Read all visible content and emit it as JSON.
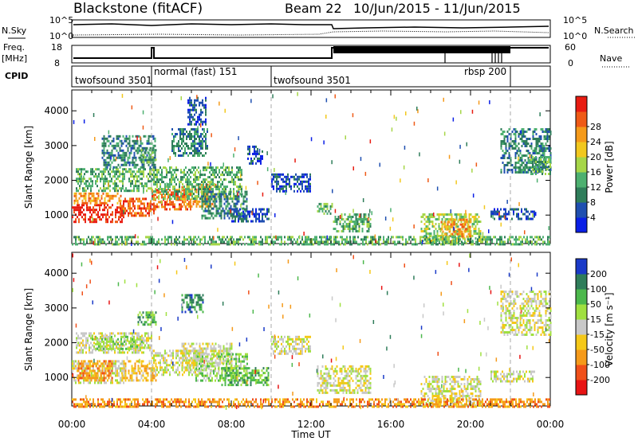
{
  "header": {
    "site": "Blackstone (fitACF)",
    "beam": "Beam 22",
    "dates": "10/Jun/2015 - 11/Jun/2015"
  },
  "left_labels": {
    "nsky": "N.Sky",
    "freq": "Freq.",
    "mhz": "[MHz]",
    "cpid": "CPID"
  },
  "right_labels": {
    "nsearch": "N.Search",
    "nave": "Nave"
  },
  "status_ticks": {
    "noise_left": [
      "10^5",
      "10^0"
    ],
    "noise_right": [
      "10^5",
      "10^0"
    ],
    "freq_left": [
      "18",
      "8"
    ],
    "freq_right": [
      "60",
      "0"
    ]
  },
  "cpid_segments": [
    {
      "label": "twofsound 3501",
      "start_h": 0,
      "end_h": 4
    },
    {
      "label": "normal (fast) 151",
      "start_h": 4,
      "end_h": 10
    },
    {
      "label": "twofsound 3501",
      "start_h": 10,
      "end_h": 18.5
    },
    {
      "label": "rbsp 200",
      "start_h": 18.5,
      "end_h": 22
    }
  ],
  "cpid_boundaries_h": [
    4,
    10,
    22
  ],
  "time_axis": {
    "title": "Time UT",
    "ticks": [
      "00:00",
      "04:00",
      "08:00",
      "12:00",
      "16:00",
      "20:00",
      "00:00"
    ],
    "range_h": [
      0,
      24
    ]
  },
  "chart_data": [
    {
      "type": "heatmap",
      "name": "power",
      "ylabel": "Slant Range [km]",
      "yticks": [
        1000,
        2000,
        3000,
        4000
      ],
      "ylim": [
        180,
        4600
      ],
      "xlim_hours": [
        0,
        24
      ],
      "colorbar": {
        "label": "Power [dB]",
        "ticks": [
          "4",
          "8",
          "12",
          "16",
          "20",
          "24",
          "28"
        ],
        "colors": [
          "#0a1fe6",
          "#1f4fb0",
          "#2f7d5a",
          "#4db070",
          "#a6d648",
          "#f2c81e",
          "#f59a1a",
          "#ef5a16",
          "#e81c12"
        ]
      },
      "echo_regions": [
        {
          "t0": 0.0,
          "t1": 2.6,
          "r0": 820,
          "r1": 1320,
          "c": 8
        },
        {
          "t0": 0.1,
          "t1": 2.5,
          "r0": 1320,
          "r1": 1650,
          "c": 6
        },
        {
          "t0": 2.4,
          "t1": 4.2,
          "r0": 980,
          "r1": 1500,
          "c": 7
        },
        {
          "t0": 4.0,
          "t1": 6.0,
          "r0": 1150,
          "r1": 1750,
          "c": 7
        },
        {
          "t0": 5.5,
          "t1": 7.2,
          "r0": 1250,
          "r1": 1900,
          "c": 6
        },
        {
          "t0": 0.2,
          "t1": 4.0,
          "r0": 1700,
          "r1": 2350,
          "c": 3
        },
        {
          "t0": 4.0,
          "t1": 8.5,
          "r0": 1500,
          "r1": 2400,
          "c": 3
        },
        {
          "t0": 6.5,
          "t1": 8.8,
          "r0": 900,
          "r1": 1700,
          "c": 2
        },
        {
          "t0": 8.0,
          "t1": 9.9,
          "r0": 800,
          "r1": 1200,
          "c": 1
        },
        {
          "t0": 1.5,
          "t1": 4.2,
          "r0": 2400,
          "r1": 3300,
          "c": 2
        },
        {
          "t0": 3.3,
          "t1": 4.2,
          "r0": 2500,
          "r1": 2900,
          "c": 3
        },
        {
          "t0": 5.0,
          "t1": 6.8,
          "r0": 2700,
          "r1": 3500,
          "c": 2
        },
        {
          "t0": 5.8,
          "t1": 6.7,
          "r0": 3600,
          "r1": 4400,
          "c": 1
        },
        {
          "t0": 8.8,
          "t1": 9.6,
          "r0": 2500,
          "r1": 3000,
          "c": 1
        },
        {
          "t0": 10.0,
          "t1": 12.0,
          "r0": 1700,
          "r1": 2200,
          "c": 1
        },
        {
          "t0": 12.3,
          "t1": 13.1,
          "r0": 1050,
          "r1": 1350,
          "c": 3
        },
        {
          "t0": 13.1,
          "t1": 15.0,
          "r0": 550,
          "r1": 1050,
          "c": 3
        },
        {
          "t0": 17.5,
          "t1": 20.5,
          "r0": 200,
          "r1": 1050,
          "c": 4
        },
        {
          "t0": 18.5,
          "t1": 20.0,
          "r0": 400,
          "r1": 900,
          "c": 6
        },
        {
          "t0": 21.5,
          "t1": 24.0,
          "r0": 2200,
          "r1": 3500,
          "c": 2
        },
        {
          "t0": 23.0,
          "t1": 24.0,
          "r0": 2200,
          "r1": 2700,
          "c": 3
        },
        {
          "t0": 21.0,
          "t1": 23.2,
          "r0": 900,
          "r1": 1200,
          "c": 1
        },
        {
          "t0": 0.0,
          "t1": 24.0,
          "r0": 180,
          "r1": 400,
          "c": 3
        }
      ]
    },
    {
      "type": "heatmap",
      "name": "velocity",
      "ylabel": "Slant Range [km]",
      "yticks": [
        1000,
        2000,
        3000,
        4000
      ],
      "ylim": [
        180,
        4600
      ],
      "xlim_hours": [
        0,
        24
      ],
      "colorbar": {
        "label": "Velocity [m s⁻¹]",
        "ticks": [
          "200",
          "100",
          "50",
          "15",
          "-15",
          "-50",
          "-100",
          "-200"
        ],
        "colors": [
          "#e81414",
          "#f0501a",
          "#f59a1a",
          "#f5c818",
          "#c8c8c8",
          "#a0e040",
          "#4cb84c",
          "#2f7d5a",
          "#1a3ac8"
        ]
      },
      "echo_regions": [
        {
          "t0": 0.0,
          "t1": 2.6,
          "r0": 820,
          "r1": 1500,
          "c": 4
        },
        {
          "t0": 0.3,
          "t1": 2.0,
          "r0": 900,
          "r1": 1500,
          "c": 2
        },
        {
          "t0": 2.5,
          "t1": 4.2,
          "r0": 950,
          "r1": 1500,
          "c": 3
        },
        {
          "t0": 4.0,
          "t1": 6.5,
          "r0": 1100,
          "r1": 1800,
          "c": 4
        },
        {
          "t0": 5.5,
          "t1": 8.0,
          "r0": 1200,
          "r1": 2000,
          "c": 4
        },
        {
          "t0": 6.2,
          "t1": 8.8,
          "r0": 900,
          "r1": 1700,
          "c": 5
        },
        {
          "t0": 7.5,
          "t1": 9.9,
          "r0": 800,
          "r1": 1300,
          "c": 6
        },
        {
          "t0": 0.2,
          "t1": 4.0,
          "r0": 1700,
          "r1": 2300,
          "c": 4
        },
        {
          "t0": 1.0,
          "t1": 3.5,
          "r0": 1800,
          "r1": 2200,
          "c": 5
        },
        {
          "t0": 3.3,
          "t1": 4.2,
          "r0": 2500,
          "r1": 2900,
          "c": 6
        },
        {
          "t0": 5.5,
          "t1": 6.6,
          "r0": 2900,
          "r1": 3400,
          "c": 7
        },
        {
          "t0": 10.0,
          "t1": 12.0,
          "r0": 1700,
          "r1": 2200,
          "c": 4
        },
        {
          "t0": 12.3,
          "t1": 15.0,
          "r0": 550,
          "r1": 1350,
          "c": 4
        },
        {
          "t0": 17.5,
          "t1": 20.5,
          "r0": 200,
          "r1": 1050,
          "c": 4
        },
        {
          "t0": 21.5,
          "t1": 24.0,
          "r0": 2200,
          "r1": 3500,
          "c": 4
        },
        {
          "t0": 21.0,
          "t1": 23.2,
          "r0": 900,
          "r1": 1200,
          "c": 4
        },
        {
          "t0": 0.0,
          "t1": 24.0,
          "r0": 180,
          "r1": 400,
          "c": 2
        }
      ]
    }
  ]
}
